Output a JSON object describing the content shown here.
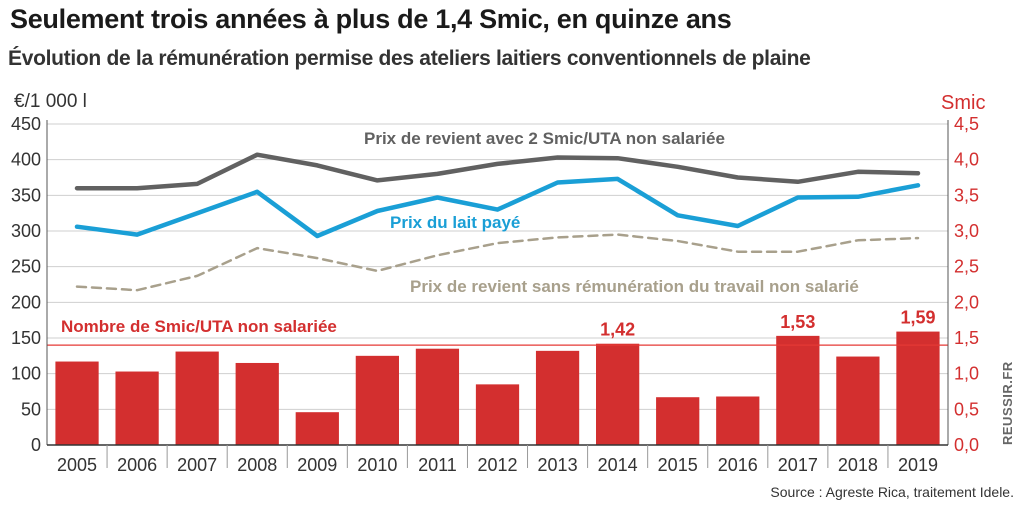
{
  "title": "Seulement trois années à plus de 1,4 Smic, en quinze ans",
  "subtitle": "Évolution de la rémunération permise des ateliers laitiers conventionnels de plaine",
  "watermark": "REUSSIR.FR",
  "source": "Source : Agreste Rica, traitement Idele.",
  "colors": {
    "bars": "#d32f2f",
    "prix_lait": "#1a9fd6",
    "prix_revient_2smic": "#616161",
    "prix_revient_sans": "#a8a08c",
    "threshold": "#e53935"
  },
  "chart_data": {
    "type": "bar",
    "categories": [
      "2005",
      "2006",
      "2007",
      "2008",
      "2009",
      "2010",
      "2011",
      "2012",
      "2013",
      "2014",
      "2015",
      "2016",
      "2017",
      "2018",
      "2019"
    ],
    "y_left": {
      "label": "€/1 000 l",
      "ticks": [
        "0",
        "50",
        "100",
        "150",
        "200",
        "250",
        "300",
        "350",
        "400",
        "450"
      ],
      "range": [
        0,
        450
      ]
    },
    "y_right": {
      "label": "Smic",
      "ticks": [
        "0,0",
        "0,5",
        "1,0",
        "1,5",
        "2,0",
        "2,5",
        "3,0",
        "3,5",
        "4,0",
        "4,5"
      ],
      "range": [
        0,
        4.5
      ]
    },
    "grid": true,
    "bars": {
      "name": "Nombre de Smic/UTA non salariée",
      "axis": "right",
      "values": [
        1.17,
        1.03,
        1.31,
        1.15,
        0.46,
        1.25,
        1.35,
        0.85,
        1.32,
        1.42,
        0.67,
        0.68,
        1.53,
        1.24,
        1.59
      ],
      "data_labels": [
        {
          "index": 9,
          "text": "1,42"
        },
        {
          "index": 12,
          "text": "1,53"
        },
        {
          "index": 14,
          "text": "1,59"
        }
      ],
      "threshold": 1.4
    },
    "series": [
      {
        "name": "Prix de revient avec 2 Smic/UTA non salariée",
        "axis": "left",
        "style": "solid",
        "values": [
          360,
          360,
          366,
          407,
          392,
          371,
          380,
          394,
          403,
          402,
          390,
          375,
          369,
          383,
          381
        ]
      },
      {
        "name": "Prix du lait payé",
        "axis": "left",
        "style": "solid",
        "values": [
          306,
          295,
          325,
          355,
          293,
          328,
          347,
          330,
          368,
          373,
          322,
          307,
          347,
          348,
          364
        ]
      },
      {
        "name": "Prix de revient sans rémunération du travail non salarié",
        "axis": "left",
        "style": "dashed",
        "values": [
          222,
          217,
          237,
          276,
          262,
          244,
          266,
          283,
          291,
          295,
          286,
          271,
          271,
          287,
          290
        ]
      }
    ]
  }
}
